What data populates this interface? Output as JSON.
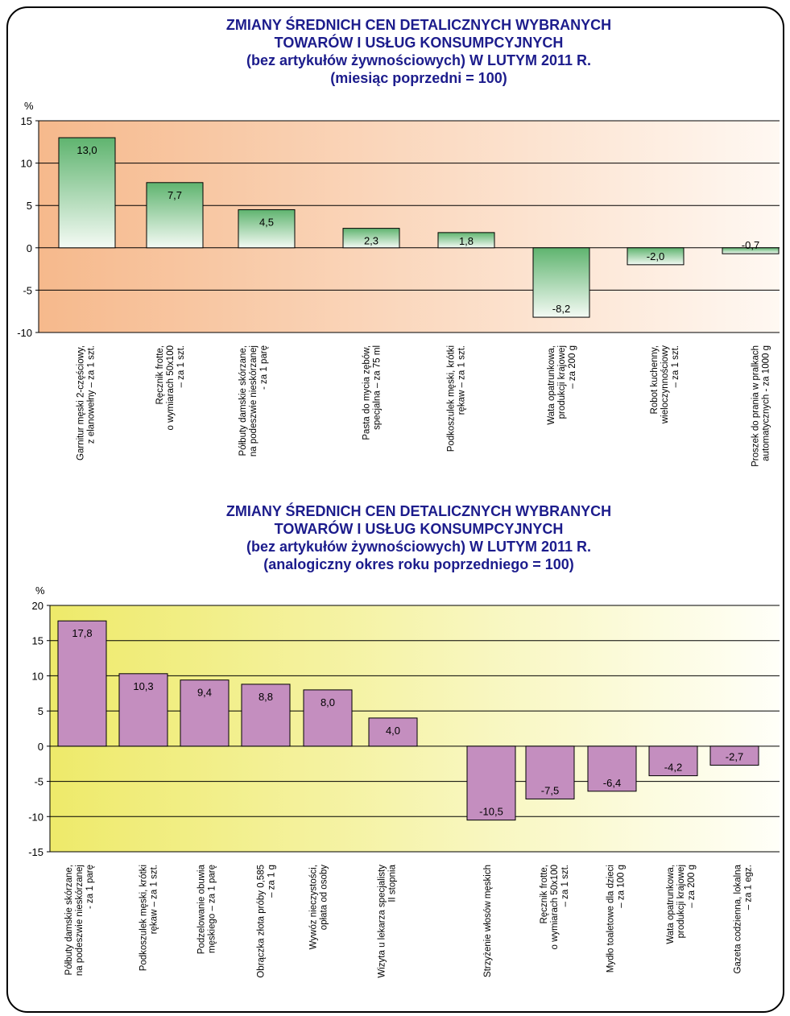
{
  "chart_data": [
    {
      "type": "bar",
      "title": [
        "ZMIANY ŚREDNICH CEN DETALICZNYCH WYBRANYCH",
        "TOWARÓW I USŁUG KONSUMPCYJNYCH",
        "(bez artykułów żywnościowych) W LUTYM 2011 R.",
        "(miesiąc poprzedni = 100)"
      ],
      "ylabel": "%",
      "ylim": [
        -10,
        15
      ],
      "yticks": [
        15,
        10,
        5,
        0,
        -5,
        -10
      ],
      "grid": true,
      "categories": [
        [
          "Garnitur męski 2-częściowy,",
          "z elanowełny – za 1 szt."
        ],
        [
          "Ręcznik frotte,",
          "o wymiarach 50x100",
          "– za 1 szt."
        ],
        [
          "Półbuty damskie skórzane,",
          "na podeszwie nieskórzanej",
          "- za 1 parę"
        ],
        [
          "Pasta do mycia zębów,",
          "specjalna – za 75 ml"
        ],
        [
          "Podkoszulek męski, krótki",
          "rękaw – za 1 szt."
        ],
        [
          "Wata opatrunkowa,",
          "produkcji krajowej",
          "– za 200 g"
        ],
        [
          "Robot kuchenny,",
          "wieloczynnościowy",
          "– za 1 szt."
        ],
        [
          "Proszek do prania w pralkach",
          "automatycznych - za 1000 g"
        ]
      ],
      "values": [
        13.0,
        7.7,
        4.5,
        2.3,
        1.8,
        -8.2,
        -2.0,
        -0.7
      ],
      "value_labels": [
        "13,0",
        "7,7",
        "4,5",
        "2,3",
        "1,8",
        "-8,2",
        "-2,0",
        "-0,7"
      ],
      "colors": {
        "bar_top": "#5fb46f",
        "bar_bottom": "#f4faf4",
        "bg_left": "#f6b98c",
        "bg_right": "#fff8f2"
      }
    },
    {
      "type": "bar",
      "title": [
        "ZMIANY ŚREDNICH CEN DETALICZNYCH WYBRANYCH",
        "TOWARÓW I USŁUG KONSUMPCYJNYCH",
        "(bez artykułów żywnościowych) W LUTYM 2011 R.",
        "(analogiczny okres roku poprzedniego = 100)"
      ],
      "ylabel": "%",
      "ylim": [
        -15,
        20
      ],
      "yticks": [
        20,
        15,
        10,
        5,
        0,
        -5,
        -10,
        -15
      ],
      "grid": true,
      "categories": [
        [
          "Półbuty damskie skórzane,",
          "na podeszwie nieskórzanej",
          "- za 1 parę"
        ],
        [
          "Podkoszulek męski, krótki",
          "rękaw – za 1 szt."
        ],
        [
          "Podzelowanie obuwia",
          "męskiego – za 1 parę"
        ],
        [
          "Obrączka złota próby 0,585",
          "– za 1 g"
        ],
        [
          "Wywóz nieczystości,",
          "opłata od osoby"
        ],
        [
          "Wizyta u lekarza specjalisty",
          "II stopnia"
        ],
        [
          "Strzyżenie włosów męskich"
        ],
        [
          "Ręcznik frotte,",
          "o wymiarach 50x100",
          "– za 1 szt."
        ],
        [
          "Mydło toaletowe dla dzieci",
          "– za 100 g"
        ],
        [
          "Wata opatrunkowa,",
          "produkcji krajowej",
          "– za 200 g"
        ],
        [
          "Gazeta codzienna, lokalna",
          "– za 1 egz."
        ]
      ],
      "values": [
        17.8,
        10.3,
        9.4,
        8.8,
        8.0,
        4.0,
        -10.5,
        -7.5,
        -6.4,
        -4.2,
        -2.7
      ],
      "value_labels": [
        "17,8",
        "10,3",
        "9,4",
        "8,8",
        "8,0",
        "4,0",
        "-10,5",
        "-7,5",
        "-6,4",
        "-4,2",
        "-2,7"
      ],
      "colors": {
        "bar": "#c48ebf",
        "bg_left": "#eeea6a",
        "bg_right": "#fffff8"
      }
    }
  ]
}
